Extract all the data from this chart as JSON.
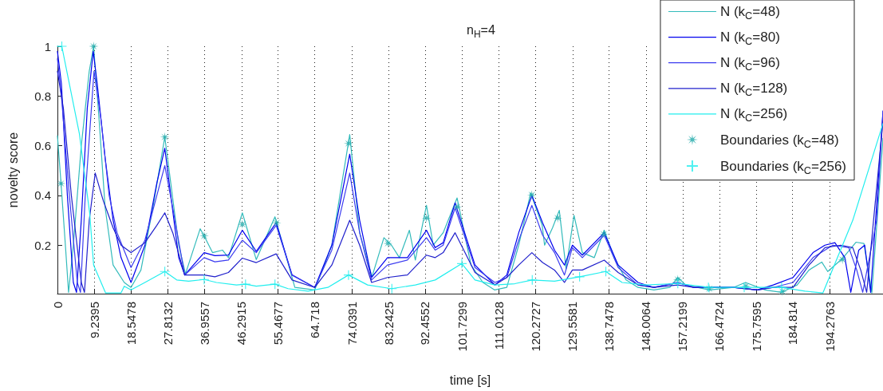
{
  "chart_data": {
    "type": "line",
    "title": "n$_{H}$=4",
    "xlabel": "time [s]",
    "ylabel": "novelty score",
    "xlim": [
      0,
      207.6
    ],
    "xticks": [
      0,
      9.2395,
      18.5478,
      27.8132,
      36.9557,
      46.2915,
      55.4677,
      64.718,
      74.0391,
      83.2425,
      92.4552,
      101.7299,
      111.0128,
      120.2727,
      129.5581,
      138.7478,
      148.0064,
      157.2199,
      166.4724,
      175.7595,
      184.814,
      194.2763
    ],
    "ylim": [
      0.005,
      1
    ],
    "yticks": [
      0.2,
      0.4,
      0.6,
      0.8,
      1
    ],
    "grid": "x",
    "legend": "top right",
    "series": [
      {
        "name": "N (k$_{C}$=48)",
        "type": "line",
        "marker": "none",
        "color": "#33bbbb",
        "x": [
          0,
          0.9,
          2,
          2.8,
          4,
          6,
          8,
          9.1,
          10.5,
          12,
          14,
          16.8,
          18.5,
          21,
          24,
          27,
          28.5,
          30.5,
          32.2,
          35.9,
          36.9,
          39,
          41.5,
          43,
          46.5,
          50,
          54.7,
          59.7,
          64.7,
          69,
          73.5,
          76,
          79.1,
          82.1,
          84,
          86,
          88.5,
          90,
          92.8,
          94.5,
          97,
          100.5,
          104,
          107,
          109.9,
          113,
          116,
          119,
          121.9,
          122.5,
          124.5,
          126.2,
          127.9,
          129.9,
          132,
          135,
          137.5,
          140,
          143,
          146,
          150,
          154,
          156,
          158,
          164,
          170,
          173,
          178,
          182,
          186,
          189,
          192.2,
          193.7,
          197.5,
          200.8,
          202.8,
          204.8,
          207.6
        ],
        "values": [
          0.64,
          0.45,
          0.2,
          0.01,
          0.2,
          0.6,
          0.9,
          1.0,
          0.7,
          0.35,
          0.12,
          0.05,
          0.03,
          0.1,
          0.35,
          0.635,
          0.45,
          0.2,
          0.085,
          0.266,
          0.237,
          0.17,
          0.18,
          0.15,
          0.33,
          0.142,
          0.314,
          0.03,
          0.02,
          0.2,
          0.645,
          0.25,
          0.073,
          0.23,
          0.2,
          0.15,
          0.26,
          0.14,
          0.36,
          0.2,
          0.25,
          0.39,
          0.12,
          0.05,
          0.02,
          0.03,
          0.2,
          0.41,
          0.28,
          0.2,
          0.27,
          0.34,
          0.105,
          0.32,
          0.17,
          0.15,
          0.26,
          0.15,
          0.06,
          0.03,
          0.02,
          0.03,
          0.07,
          0.04,
          0.02,
          0.03,
          0.05,
          0.02,
          0.01,
          0.04,
          0.1,
          0.132,
          0.094,
          0.148,
          0.212,
          0.207,
          0.008,
          0.63
        ]
      },
      {
        "name": "N (k$_{C}$=80)",
        "type": "line",
        "marker": "none",
        "color": "#0000ee",
        "x": [
          0,
          1,
          2.5,
          4,
          4.8,
          6,
          7.5,
          9,
          10,
          12,
          14,
          16,
          18.5,
          22,
          25,
          27,
          28.5,
          30.5,
          32,
          36.9,
          39.6,
          43,
          46.5,
          50,
          55,
          59,
          64.7,
          69,
          73.5,
          76,
          79,
          83,
          88,
          92.8,
          95,
          97,
          100,
          105,
          110,
          113,
          116,
          119.3,
          122,
          125,
          127.5,
          129.5,
          132,
          137.5,
          141,
          146,
          150,
          156,
          160,
          170,
          176,
          180,
          185,
          190,
          193,
          195.5,
          198,
          199.5,
          201.5,
          203,
          204.5,
          207.6
        ],
        "values": [
          0.98,
          0.85,
          0.4,
          0.05,
          0.01,
          0.3,
          0.75,
          0.98,
          0.85,
          0.55,
          0.3,
          0.15,
          0.05,
          0.2,
          0.45,
          0.59,
          0.4,
          0.15,
          0.08,
          0.17,
          0.158,
          0.16,
          0.26,
          0.175,
          0.29,
          0.08,
          0.03,
          0.2,
          0.566,
          0.3,
          0.07,
          0.15,
          0.15,
          0.26,
          0.19,
          0.21,
          0.37,
          0.12,
          0.04,
          0.08,
          0.25,
          0.4,
          0.29,
          0.18,
          0.12,
          0.2,
          0.16,
          0.25,
          0.12,
          0.05,
          0.03,
          0.05,
          0.03,
          0.03,
          0.02,
          0.04,
          0.07,
          0.17,
          0.2,
          0.21,
          0.15,
          0.01,
          0.18,
          0.2,
          0.01,
          0.74
        ]
      },
      {
        "name": "N (k$_{C}$=96)",
        "type": "line",
        "marker": "none",
        "color": "#3c3cf0",
        "x": [
          0,
          1,
          3,
          5,
          5.8,
          7,
          9.2,
          11,
          13,
          15,
          18.5,
          22,
          25,
          27,
          29,
          32,
          36.9,
          39.6,
          43,
          46.5,
          50,
          55,
          59,
          64.7,
          69,
          73.5,
          76,
          79,
          83,
          88,
          92.8,
          95,
          97,
          100,
          105,
          110,
          113,
          116,
          119.3,
          122,
          125,
          127.5,
          129.5,
          132,
          137.5,
          141,
          146,
          150,
          156,
          160,
          170,
          176,
          180,
          185,
          190,
          195,
          199,
          201,
          202.5,
          206,
          207.6
        ],
        "values": [
          0.95,
          0.8,
          0.4,
          0.05,
          0.01,
          0.4,
          0.9,
          0.7,
          0.4,
          0.25,
          0.11,
          0.22,
          0.4,
          0.52,
          0.35,
          0.08,
          0.15,
          0.133,
          0.14,
          0.22,
          0.17,
          0.28,
          0.08,
          0.03,
          0.18,
          0.49,
          0.25,
          0.06,
          0.12,
          0.14,
          0.23,
          0.18,
          0.2,
          0.35,
          0.11,
          0.05,
          0.07,
          0.22,
          0.36,
          0.24,
          0.17,
          0.08,
          0.19,
          0.15,
          0.24,
          0.11,
          0.04,
          0.03,
          0.05,
          0.03,
          0.03,
          0.02,
          0.03,
          0.05,
          0.15,
          0.2,
          0.19,
          0.1,
          0.01,
          0.3,
          0.74
        ]
      },
      {
        "name": "N (k$_{C}$=128)",
        "type": "line",
        "marker": "none",
        "color": "#2020cc",
        "x": [
          0,
          1.5,
          3.5,
          6,
          6.8,
          8,
          9.5,
          11.5,
          14,
          16,
          18.5,
          22,
          25,
          27,
          29,
          32,
          36.9,
          39.6,
          43,
          46.5,
          50,
          55,
          59,
          64.7,
          69,
          73.5,
          76,
          79,
          83,
          88,
          92.8,
          95,
          97,
          100,
          105,
          110,
          113,
          116,
          119.3,
          122,
          125,
          127.5,
          129.5,
          132,
          137.5,
          141,
          146,
          150,
          156,
          160,
          170,
          176,
          180,
          185,
          189,
          193,
          197,
          200,
          202,
          203.5,
          207.6
        ],
        "values": [
          0.9,
          0.75,
          0.4,
          0.05,
          0.01,
          0.3,
          0.49,
          0.38,
          0.27,
          0.2,
          0.17,
          0.21,
          0.28,
          0.33,
          0.25,
          0.08,
          0.08,
          0.073,
          0.09,
          0.148,
          0.13,
          0.165,
          0.06,
          0.03,
          0.12,
          0.3,
          0.2,
          0.05,
          0.07,
          0.08,
          0.16,
          0.15,
          0.17,
          0.25,
          0.09,
          0.04,
          0.07,
          0.12,
          0.17,
          0.13,
          0.1,
          0.05,
          0.1,
          0.1,
          0.14,
          0.09,
          0.04,
          0.03,
          0.04,
          0.03,
          0.03,
          0.02,
          0.03,
          0.03,
          0.12,
          0.19,
          0.2,
          0.19,
          0.1,
          0.01,
          0.7
        ]
      },
      {
        "name": "N (k$_{C}$=256)",
        "type": "line",
        "marker": "none",
        "color": "#22eeee",
        "x": [
          0,
          1.1,
          5.5,
          8.1,
          9.1,
          12.1,
          16,
          16.8,
          18.5,
          22,
          27,
          30,
          33,
          36.9,
          40,
          45,
          47.3,
          50,
          54.7,
          58,
          63,
          68,
          73.2,
          78,
          84,
          90,
          95,
          101.7,
          105,
          110,
          115,
          119.4,
          125,
          131.3,
          137.9,
          142,
          148,
          156,
          164,
          172,
          182,
          188,
          192.5,
          200,
          207.6
        ],
        "values": [
          1.0,
          1.0,
          0.65,
          0.33,
          0.12,
          0.008,
          0.008,
          0.035,
          0.02,
          0.05,
          0.094,
          0.06,
          0.055,
          0.062,
          0.05,
          0.04,
          0.043,
          0.035,
          0.043,
          0.025,
          0.015,
          0.03,
          0.08,
          0.04,
          0.025,
          0.04,
          0.06,
          0.126,
          0.06,
          0.04,
          0.045,
          0.06,
          0.055,
          0.073,
          0.094,
          0.05,
          0.04,
          0.046,
          0.03,
          0.03,
          0.03,
          0.015,
          0.008,
          0.3,
          0.69
        ]
      },
      {
        "name": "Boundaries (k$_{C}$=48)",
        "type": "scatter",
        "marker": "star",
        "color": "#20aaaa",
        "x": [
          0.9,
          9.1,
          27.0,
          36.9,
          46.5,
          55.1,
          73.2,
          83.1,
          92.8,
          100.5,
          119.3,
          125.8,
          137.4,
          156.0,
          163.9,
          173.1,
          182.3,
          197.4
        ],
        "values": [
          0.448,
          1.0,
          0.635,
          0.237,
          0.284,
          0.29,
          0.609,
          0.207,
          0.309,
          0.354,
          0.402,
          0.309,
          0.244,
          0.062,
          0.025,
          0.035,
          0.014,
          0.142
        ]
      },
      {
        "name": "Boundaries (k$_{C}$=256)",
        "type": "scatter",
        "marker": "cross",
        "color": "#22eeee",
        "x": [
          1.1,
          27.0,
          36.9,
          47.3,
          54.7,
          73.2,
          84.1,
          101.7,
          119.4,
          131.3,
          137.9,
          156.0,
          163.7,
          172.7,
          182.1
        ],
        "values": [
          1.0,
          0.094,
          0.062,
          0.043,
          0.043,
          0.08,
          0.025,
          0.126,
          0.06,
          0.073,
          0.094,
          0.046,
          0.03,
          0.03,
          0.03
        ]
      }
    ]
  }
}
